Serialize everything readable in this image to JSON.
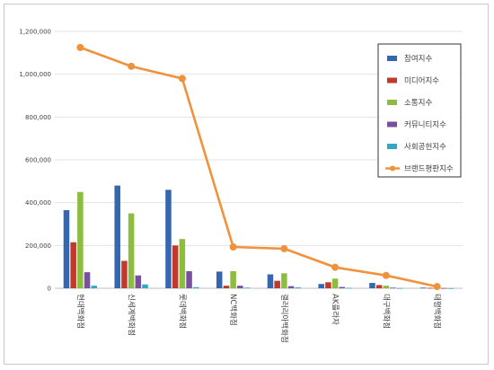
{
  "chart_data": {
    "type": "bar",
    "categories": [
      "현대백화점",
      "신세계백화점",
      "롯데백화점",
      "NC백화점",
      "갤러리아백화점",
      "AK플라자",
      "대구백화점",
      "태평백화점"
    ],
    "ylim": [
      0,
      1200000
    ],
    "yticks": [
      "0",
      "200,000",
      "400,000",
      "600,000",
      "800,000",
      "1,000,000",
      "1,200,000"
    ],
    "ytick_values": [
      0,
      200000,
      400000,
      600000,
      800000,
      1000000,
      1200000
    ],
    "grid": true,
    "legend_position": "right",
    "series": [
      {
        "name": "참여지수",
        "kind": "bar",
        "color": "#3566b0",
        "values": [
          365000,
          480000,
          460000,
          78000,
          65000,
          20000,
          25000,
          3000
        ]
      },
      {
        "name": "미디어지수",
        "kind": "bar",
        "color": "#c0392b",
        "values": [
          215000,
          128000,
          200000,
          12000,
          35000,
          28000,
          15000,
          2000
        ]
      },
      {
        "name": "소통지수",
        "kind": "bar",
        "color": "#8cbd3f",
        "values": [
          450000,
          350000,
          230000,
          80000,
          70000,
          45000,
          12000,
          2000
        ]
      },
      {
        "name": "커뮤니티지수",
        "kind": "bar",
        "color": "#7b4fa0",
        "values": [
          75000,
          60000,
          80000,
          12000,
          10000,
          6000,
          3000,
          1000
        ]
      },
      {
        "name": "사회공헌지수",
        "kind": "bar",
        "color": "#31a9c4",
        "values": [
          12000,
          18000,
          5000,
          3000,
          4000,
          2000,
          1000,
          500
        ]
      },
      {
        "name": "브랜드평판지수",
        "kind": "line",
        "color": "#f0923b",
        "values": [
          1125000,
          1037000,
          980000,
          193000,
          185000,
          98000,
          60000,
          8000
        ]
      }
    ]
  }
}
